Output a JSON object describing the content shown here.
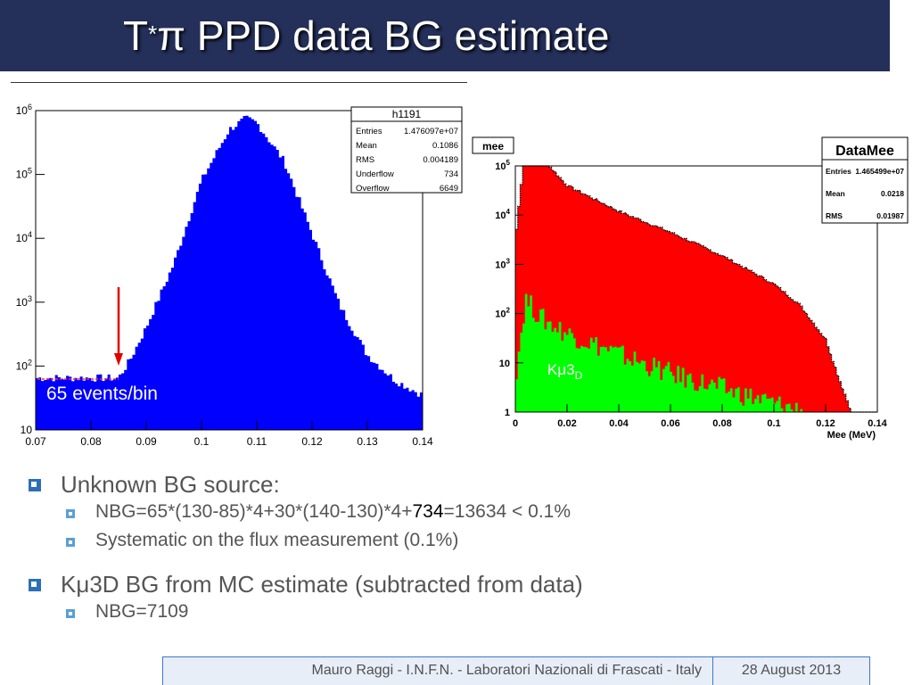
{
  "title": {
    "main": "T",
    "sup": "*",
    "rest": "π PPD data BG estimate"
  },
  "chart_data": [
    {
      "type": "area",
      "title": "h1191",
      "stats": [
        {
          "label": "Entries",
          "value": "1.476097e+07"
        },
        {
          "label": "Mean",
          "value": "0.1086"
        },
        {
          "label": "RMS",
          "value": "0.004189"
        },
        {
          "label": "Underflow",
          "value": "734"
        },
        {
          "label": "Overflow",
          "value": "6649"
        }
      ],
      "x_ticks": [
        "0.07",
        "0.08",
        "0.09",
        "0.1",
        "0.11",
        "0.12",
        "0.13",
        "0.14"
      ],
      "y_ticks": [
        {
          "base": "10",
          "exp": ""
        },
        {
          "base": "10",
          "exp": "2"
        },
        {
          "base": "10",
          "exp": "3"
        },
        {
          "base": "10",
          "exp": "4"
        },
        {
          "base": "10",
          "exp": "5"
        },
        {
          "base": "10",
          "exp": "6"
        }
      ],
      "xlim": [
        0.07,
        0.14
      ],
      "ylim_log": [
        10,
        1000000
      ],
      "scale": "log",
      "annotation": "65 events/bin",
      "arrow_at_x": 0.085,
      "series": [
        {
          "color": "#0000ff",
          "x": [
            0.07,
            0.075,
            0.08,
            0.085,
            0.087,
            0.09,
            0.095,
            0.1,
            0.105,
            0.108,
            0.11,
            0.115,
            0.12,
            0.125,
            0.13,
            0.135,
            0.14
          ],
          "y": [
            65,
            65,
            65,
            65,
            120,
            400,
            4000,
            80000,
            500000,
            750000,
            650000,
            160000,
            12000,
            900,
            150,
            60,
            35
          ]
        }
      ]
    },
    {
      "type": "area",
      "title": "mee",
      "stats_title": "DataMee",
      "stats": [
        {
          "label": "Entries",
          "value": "1.465499e+07"
        },
        {
          "label": "Mean",
          "value": "0.0218"
        },
        {
          "label": "RMS",
          "value": "0.01987"
        }
      ],
      "x_ticks": [
        "0",
        "0.02",
        "0.04",
        "0.06",
        "0.08",
        "0.1",
        "0.12",
        "0.14"
      ],
      "y_ticks": [
        {
          "base": "1",
          "exp": ""
        },
        {
          "base": "10",
          "exp": ""
        },
        {
          "base": "10",
          "exp": "2"
        },
        {
          "base": "10",
          "exp": "3"
        },
        {
          "base": "10",
          "exp": "4"
        },
        {
          "base": "10",
          "exp": "5"
        }
      ],
      "xlabel": "Mee (MeV)",
      "xlim": [
        0,
        0.14
      ],
      "ylim_log": [
        1,
        100000
      ],
      "scale": "log",
      "annotation": {
        "main": "Kμ3",
        "sub": "D"
      },
      "series": [
        {
          "color": "#ff0000",
          "x": [
            0,
            0.004,
            0.01,
            0.02,
            0.04,
            0.06,
            0.08,
            0.1,
            0.11,
            0.12,
            0.125,
            0.13,
            0.135
          ],
          "y": [
            3000,
            300000,
            150000,
            40000,
            12000,
            4500,
            1500,
            400,
            150,
            30,
            5,
            1,
            0.5
          ]
        },
        {
          "color": "#00ff00",
          "x": [
            0,
            0.004,
            0.01,
            0.02,
            0.04,
            0.06,
            0.08,
            0.1,
            0.12,
            0.13
          ],
          "y": [
            5,
            200,
            80,
            40,
            15,
            6,
            3,
            1.5,
            0.8,
            0.5
          ]
        }
      ]
    }
  ],
  "bullets": [
    {
      "level": 1,
      "text": "Unknown BG source:"
    },
    {
      "level": 2,
      "pre": "NBG=65*(130-85)*4+30*(140-130)*4+",
      "highlight": "734",
      "post": "=13634 < 0.1%"
    },
    {
      "level": 2,
      "text": "Systematic on the flux measurement (0.1%)"
    },
    {
      "level": 1,
      "text": "Kμ3D BG from MC estimate (subtracted from data)"
    },
    {
      "level": 2,
      "text": "NBG=7109"
    }
  ],
  "footer": {
    "left": "Mauro Raggi - I.N.F.N. - Laboratori Nazionali di Frascati - Italy",
    "right": "28 August 2013"
  },
  "colors": {
    "title_bg": "#24305a",
    "bullet": "#2c6fb7",
    "sub_bullet": "#5a9ed8",
    "footer_border": "#3c78c8"
  }
}
